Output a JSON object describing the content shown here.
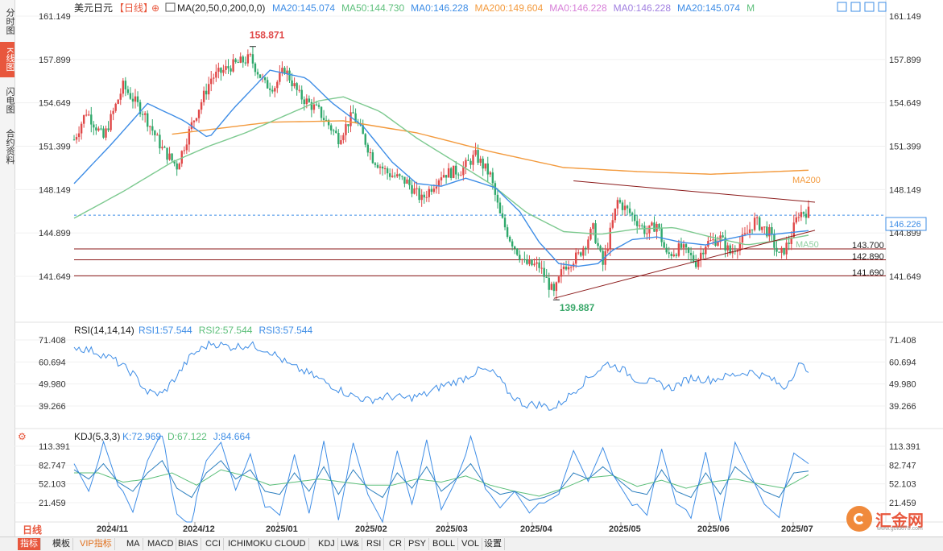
{
  "sidebar": {
    "tabs": [
      "分时图",
      "K线图",
      "闪电图",
      "合约资料"
    ],
    "active": 1
  },
  "header": {
    "symbol": "美元日元",
    "period": "【日线】",
    "ma_formula": "MA(20,50,0,200,0,0)",
    "ma_values": [
      {
        "label": "MA20:145.074",
        "color": "#3e8de6"
      },
      {
        "label": "MA50:144.730",
        "color": "#5cbf7a"
      },
      {
        "label": "MA0:146.228",
        "color": "#3e8de6"
      },
      {
        "label": "MA200:149.604",
        "color": "#f39a3d"
      },
      {
        "label": "MA0:146.228",
        "color": "#d77fd8"
      },
      {
        "label": "MA0:146.228",
        "color": "#a07fe0"
      },
      {
        "label": "MA20:145.074",
        "color": "#3e8de6"
      },
      {
        "label": "M",
        "color": "#5cbf7a"
      }
    ]
  },
  "main_axis": {
    "ticks": [
      "161.149",
      "157.899",
      "154.649",
      "151.399",
      "148.149",
      "144.899",
      "141.649"
    ]
  },
  "rsi_panel": {
    "title": "RSI(14,14,14)",
    "values": [
      {
        "label": "RSI1:57.544",
        "color": "#3e8de6"
      },
      {
        "label": "RSI2:57.544",
        "color": "#5cbf7a"
      },
      {
        "label": "RSI3:57.544",
        "color": "#3e8de6"
      }
    ],
    "ticks": [
      "71.408",
      "60.694",
      "49.980",
      "39.266"
    ]
  },
  "kdj_panel": {
    "title": "KDJ(5,3,3)",
    "values": [
      {
        "label": "K:72.969",
        "color": "#3e8de6"
      },
      {
        "label": "D:67.122",
        "color": "#5cbf7a"
      },
      {
        "label": "J:84.664",
        "color": "#3e8de6"
      }
    ],
    "ticks": [
      "113.391",
      "82.747",
      "52.103",
      "21.459"
    ]
  },
  "date_labels": [
    "2024/11",
    "2024/12",
    "2025/01",
    "2025/02",
    "2025/03",
    "2025/04",
    "2025/05",
    "2025/06",
    "2025/07"
  ],
  "annotations": {
    "high": "158.871",
    "low": "139.887",
    "ma200_label": "MA200",
    "ma50_label": "MA50",
    "current_price": "146.226",
    "levels": [
      "143.700",
      "142.890",
      "141.690"
    ]
  },
  "bottom": {
    "day_tab": "日线",
    "items": [
      "指标",
      "模板",
      "VIP指标",
      "MA",
      "MACD",
      "BIAS",
      "CCI",
      "ICHIMOKU CLOUD",
      "KDJ",
      "LW&",
      "RSI",
      "CR",
      "PSY",
      "BOLL",
      "VOL",
      "设置"
    ]
  },
  "logo": {
    "text": "汇金网",
    "url": "www.gold678.com"
  },
  "chart_data": {
    "type": "candlestick",
    "title": "美元日元",
    "x_start": "2024-10-21",
    "x_end": "2025-07-03",
    "ylim": [
      139.0,
      161.6
    ],
    "price_keypoints": [
      [
        0,
        151.9
      ],
      [
        5,
        154.0
      ],
      [
        12,
        152.0
      ],
      [
        20,
        155.9
      ],
      [
        28,
        154.0
      ],
      [
        36,
        151.2
      ],
      [
        42,
        149.9
      ],
      [
        48,
        153.0
      ],
      [
        56,
        156.5
      ],
      [
        64,
        157.4
      ],
      [
        72,
        158.0
      ],
      [
        78,
        156.0
      ],
      [
        82,
        155.9
      ],
      [
        86,
        157.2
      ],
      [
        92,
        155.2
      ],
      [
        100,
        154.0
      ],
      [
        108,
        152.0
      ],
      [
        114,
        153.8
      ],
      [
        122,
        150.5
      ],
      [
        128,
        149.4
      ],
      [
        136,
        148.7
      ],
      [
        142,
        147.4
      ],
      [
        150,
        149.3
      ],
      [
        158,
        149.6
      ],
      [
        164,
        150.7
      ],
      [
        170,
        149.2
      ],
      [
        174,
        146.2
      ],
      [
        178,
        144.5
      ],
      [
        184,
        142.6
      ],
      [
        190,
        142.4
      ],
      [
        196,
        140.3
      ],
      [
        200,
        142.4
      ],
      [
        206,
        143.2
      ],
      [
        212,
        145.2
      ],
      [
        216,
        142.5
      ],
      [
        222,
        147.3
      ],
      [
        228,
        146.2
      ],
      [
        234,
        144.9
      ],
      [
        238,
        145.6
      ],
      [
        242,
        143.2
      ],
      [
        248,
        143.8
      ],
      [
        254,
        142.7
      ],
      [
        258,
        144.1
      ],
      [
        264,
        144.5
      ],
      [
        268,
        143.4
      ],
      [
        274,
        144.6
      ],
      [
        278,
        145.8
      ],
      [
        284,
        144.9
      ],
      [
        288,
        143.1
      ],
      [
        292,
        144.2
      ],
      [
        296,
        146.4
      ],
      [
        300,
        146.5
      ]
    ],
    "high_point": {
      "index": 73,
      "value": 158.871
    },
    "low_point": {
      "index": 197,
      "value": 139.887
    },
    "horizontal_levels": [
      143.7,
      142.89,
      141.69
    ],
    "current_price": 146.226,
    "trendlines": [
      {
        "from": [
          204,
          148.8
        ],
        "to": [
          300,
          147.2
        ]
      },
      {
        "from": [
          196,
          140.0
        ],
        "to": [
          300,
          145.1
        ]
      }
    ],
    "ma20_keypoints": [
      [
        0,
        148.6
      ],
      [
        15,
        151.5
      ],
      [
        30,
        154.6
      ],
      [
        45,
        153.3
      ],
      [
        55,
        152.0
      ],
      [
        65,
        154.2
      ],
      [
        80,
        157.1
      ],
      [
        95,
        156.5
      ],
      [
        105,
        154.7
      ],
      [
        118,
        152.9
      ],
      [
        130,
        150.2
      ],
      [
        140,
        148.6
      ],
      [
        150,
        148.4
      ],
      [
        160,
        149.0
      ],
      [
        172,
        148.3
      ],
      [
        182,
        146.5
      ],
      [
        190,
        144.2
      ],
      [
        198,
        142.6
      ],
      [
        206,
        142.4
      ],
      [
        214,
        142.6
      ],
      [
        220,
        143.6
      ],
      [
        228,
        144.4
      ],
      [
        238,
        144.6
      ],
      [
        248,
        144.2
      ],
      [
        258,
        144.0
      ],
      [
        266,
        144.4
      ],
      [
        276,
        144.8
      ],
      [
        286,
        144.8
      ],
      [
        300,
        145.07
      ]
    ],
    "ma50_keypoints": [
      [
        0,
        146.0
      ],
      [
        20,
        148.0
      ],
      [
        40,
        150.2
      ],
      [
        55,
        151.4
      ],
      [
        70,
        152.4
      ],
      [
        85,
        153.6
      ],
      [
        100,
        154.8
      ],
      [
        110,
        155.1
      ],
      [
        125,
        154.0
      ],
      [
        140,
        152.0
      ],
      [
        155,
        150.3
      ],
      [
        170,
        148.6
      ],
      [
        185,
        146.4
      ],
      [
        200,
        145.0
      ],
      [
        215,
        144.8
      ],
      [
        230,
        145.2
      ],
      [
        245,
        145.3
      ],
      [
        260,
        144.6
      ],
      [
        275,
        144.0
      ],
      [
        290,
        144.4
      ],
      [
        300,
        144.73
      ]
    ],
    "ma200_keypoints": [
      [
        40,
        152.3
      ],
      [
        80,
        153.2
      ],
      [
        110,
        153.3
      ],
      [
        140,
        152.4
      ],
      [
        170,
        151.0
      ],
      [
        200,
        149.8
      ],
      [
        230,
        149.5
      ],
      [
        260,
        149.3
      ],
      [
        300,
        149.6
      ]
    ],
    "rsi_keypoints": [
      [
        0,
        68
      ],
      [
        8,
        66
      ],
      [
        16,
        62
      ],
      [
        24,
        55
      ],
      [
        30,
        46
      ],
      [
        36,
        45
      ],
      [
        42,
        54
      ],
      [
        48,
        64
      ],
      [
        56,
        70
      ],
      [
        64,
        68
      ],
      [
        72,
        69
      ],
      [
        80,
        66
      ],
      [
        88,
        59
      ],
      [
        96,
        55
      ],
      [
        104,
        50
      ],
      [
        112,
        45
      ],
      [
        120,
        42
      ],
      [
        128,
        44
      ],
      [
        136,
        43
      ],
      [
        144,
        45
      ],
      [
        150,
        49
      ],
      [
        158,
        52
      ],
      [
        166,
        57
      ],
      [
        172,
        55
      ],
      [
        178,
        45
      ],
      [
        184,
        40
      ],
      [
        190,
        40
      ],
      [
        196,
        38
      ],
      [
        202,
        44
      ],
      [
        210,
        53
      ],
      [
        218,
        60
      ],
      [
        224,
        57
      ],
      [
        230,
        52
      ],
      [
        236,
        51
      ],
      [
        244,
        48
      ],
      [
        252,
        53
      ],
      [
        260,
        52
      ],
      [
        268,
        54
      ],
      [
        276,
        56
      ],
      [
        284,
        53
      ],
      [
        290,
        48
      ],
      [
        296,
        59
      ],
      [
        300,
        57.5
      ]
    ],
    "kdj_k_keypoints": [
      [
        0,
        75
      ],
      [
        6,
        60
      ],
      [
        12,
        85
      ],
      [
        18,
        55
      ],
      [
        24,
        40
      ],
      [
        30,
        70
      ],
      [
        36,
        90
      ],
      [
        42,
        45
      ],
      [
        48,
        30
      ],
      [
        54,
        70
      ],
      [
        60,
        90
      ],
      [
        66,
        60
      ],
      [
        72,
        75
      ],
      [
        78,
        40
      ],
      [
        84,
        35
      ],
      [
        90,
        70
      ],
      [
        96,
        40
      ],
      [
        102,
        80
      ],
      [
        108,
        35
      ],
      [
        114,
        75
      ],
      [
        120,
        45
      ],
      [
        126,
        30
      ],
      [
        132,
        70
      ],
      [
        138,
        45
      ],
      [
        144,
        80
      ],
      [
        150,
        40
      ],
      [
        156,
        60
      ],
      [
        162,
        85
      ],
      [
        168,
        50
      ],
      [
        174,
        35
      ],
      [
        180,
        40
      ],
      [
        186,
        25
      ],
      [
        192,
        30
      ],
      [
        198,
        40
      ],
      [
        204,
        70
      ],
      [
        210,
        60
      ],
      [
        216,
        80
      ],
      [
        222,
        60
      ],
      [
        228,
        40
      ],
      [
        234,
        35
      ],
      [
        240,
        75
      ],
      [
        246,
        40
      ],
      [
        252,
        30
      ],
      [
        258,
        70
      ],
      [
        264,
        35
      ],
      [
        270,
        80
      ],
      [
        276,
        60
      ],
      [
        282,
        40
      ],
      [
        288,
        30
      ],
      [
        294,
        70
      ],
      [
        300,
        73
      ]
    ],
    "kdj_d_keypoints": [
      [
        0,
        70
      ],
      [
        10,
        70
      ],
      [
        20,
        55
      ],
      [
        30,
        60
      ],
      [
        40,
        70
      ],
      [
        50,
        50
      ],
      [
        60,
        75
      ],
      [
        70,
        65
      ],
      [
        80,
        50
      ],
      [
        90,
        55
      ],
      [
        100,
        60
      ],
      [
        110,
        55
      ],
      [
        120,
        50
      ],
      [
        130,
        50
      ],
      [
        140,
        60
      ],
      [
        150,
        55
      ],
      [
        160,
        65
      ],
      [
        170,
        50
      ],
      [
        180,
        40
      ],
      [
        190,
        32
      ],
      [
        200,
        45
      ],
      [
        210,
        62
      ],
      [
        220,
        66
      ],
      [
        230,
        48
      ],
      [
        240,
        58
      ],
      [
        250,
        45
      ],
      [
        260,
        55
      ],
      [
        270,
        60
      ],
      [
        280,
        52
      ],
      [
        290,
        45
      ],
      [
        300,
        67
      ]
    ]
  }
}
